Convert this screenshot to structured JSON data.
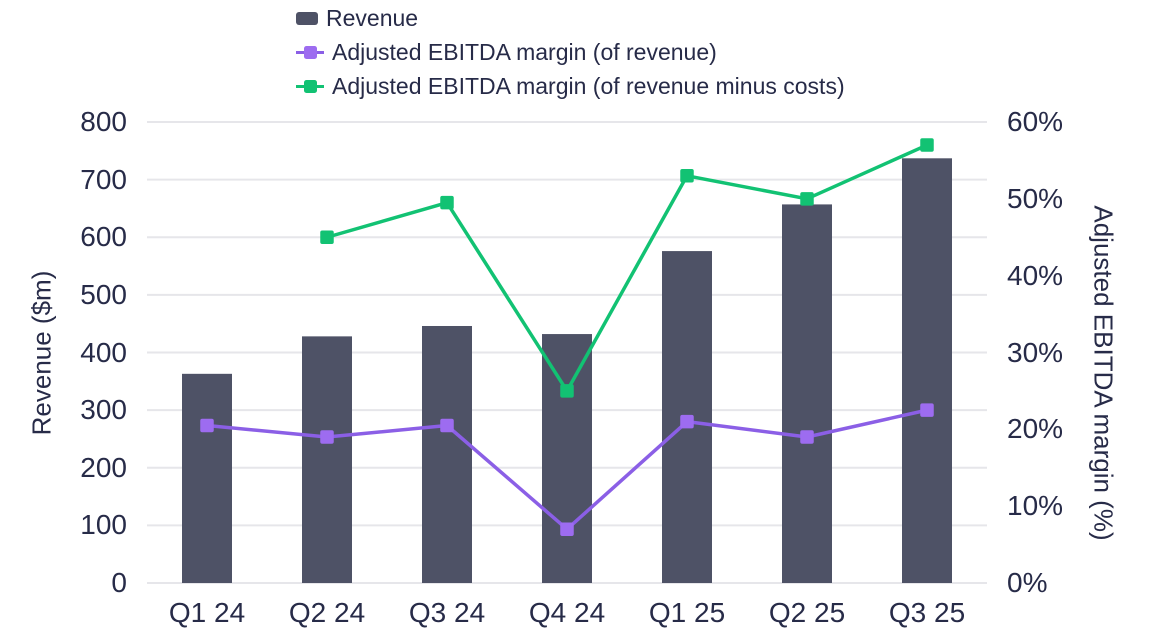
{
  "chart_data": {
    "type": "combo-bar-line",
    "title": "",
    "categories": [
      "Q1 24",
      "Q2 24",
      "Q3 24",
      "Q4 24",
      "Q1 25",
      "Q2 25",
      "Q3 25"
    ],
    "series": [
      {
        "name": "Revenue",
        "type": "bar",
        "axis": "left",
        "unit": "$m",
        "color": "#4E5266",
        "values": [
          363,
          428,
          446,
          432,
          576,
          657,
          737
        ]
      },
      {
        "name": "Adjusted EBITDA margin (of revenue)",
        "type": "line",
        "axis": "right",
        "unit": "%",
        "marker": "square",
        "color": "#8B5FE6",
        "marker_color": "#9D6CF0",
        "values": [
          20.5,
          19,
          20.5,
          7,
          21,
          19,
          22.5
        ]
      },
      {
        "name": "Adjusted EBITDA margin (of revenue minus costs)",
        "type": "line",
        "axis": "right",
        "unit": "%",
        "marker": "square",
        "color": "#12C273",
        "marker_color": "#12C273",
        "values": [
          null,
          45,
          49.5,
          25,
          53,
          50,
          57
        ]
      }
    ],
    "left_axis": {
      "label": "Revenue ($m)",
      "min": 0,
      "max": 800,
      "tick_step": 100,
      "ticks": [
        "800",
        "700",
        "600",
        "500",
        "400",
        "300",
        "200",
        "100",
        "0"
      ]
    },
    "right_axis": {
      "label": "Adjusted EBITDA margin (%)",
      "min": 0,
      "max": 60,
      "tick_step": 10,
      "ticks": [
        "60%",
        "50%",
        "40%",
        "30%",
        "20%",
        "10%",
        "0%"
      ]
    },
    "grid": true,
    "legend_position": "top-left",
    "colors": {
      "text": "#272B48",
      "grid": "#E6E6EA",
      "background": "#FFFFFF"
    }
  }
}
